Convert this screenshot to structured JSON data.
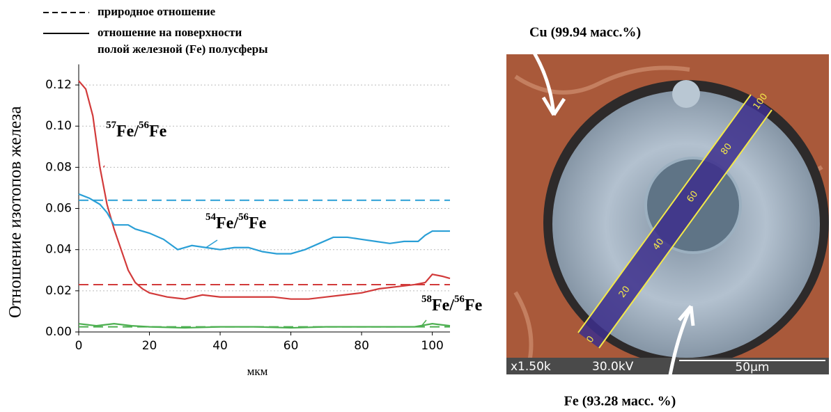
{
  "chart_data": {
    "type": "line",
    "y_label": "Отношение изотопов железа",
    "x_label": "мкм",
    "xlim": [
      0,
      105
    ],
    "ylim": [
      0,
      0.13
    ],
    "xticks": [
      0,
      20,
      40,
      60,
      80,
      100
    ],
    "yticks": [
      {
        "value": 0,
        "label": "0.00"
      },
      {
        "value": 0.02,
        "label": "0.02"
      },
      {
        "value": 0.04,
        "label": "0.04"
      },
      {
        "value": 0.06,
        "label": "0.06"
      },
      {
        "value": 0.08,
        "label": "0.08"
      },
      {
        "value": 0.1,
        "label": "0.10"
      },
      {
        "value": 0.12,
        "label": "0.12"
      }
    ],
    "grid": true,
    "legend": [
      {
        "style": "dashed",
        "lines": [
          "природное отношение"
        ]
      },
      {
        "style": "solid",
        "lines": [
          "отношение на поверхности",
          "полой железной (Fe) полусферы"
        ]
      }
    ],
    "series": [
      {
        "label_parts": [
          "57",
          "Fe/",
          "56",
          "Fe"
        ],
        "color": "#d23a3a",
        "x": [
          0,
          2,
          4,
          6,
          8,
          10,
          12,
          14,
          16,
          18,
          20,
          25,
          30,
          35,
          40,
          45,
          50,
          55,
          60,
          65,
          70,
          75,
          80,
          85,
          90,
          95,
          98,
          100,
          103,
          105
        ],
        "values": [
          0.122,
          0.118,
          0.105,
          0.08,
          0.062,
          0.05,
          0.04,
          0.03,
          0.024,
          0.021,
          0.019,
          0.017,
          0.016,
          0.018,
          0.017,
          0.017,
          0.017,
          0.017,
          0.016,
          0.016,
          0.017,
          0.018,
          0.019,
          0.021,
          0.022,
          0.023,
          0.024,
          0.028,
          0.027,
          0.026
        ]
      },
      {
        "label_parts": [
          "54",
          "Fe/",
          "56",
          "Fe"
        ],
        "color": "#2a9fd6",
        "x": [
          0,
          3,
          6,
          8,
          10,
          12,
          14,
          16,
          20,
          24,
          28,
          32,
          36,
          40,
          44,
          48,
          52,
          56,
          60,
          64,
          68,
          72,
          76,
          80,
          84,
          88,
          92,
          96,
          98,
          100,
          103,
          105
        ],
        "values": [
          0.067,
          0.065,
          0.062,
          0.058,
          0.052,
          0.052,
          0.052,
          0.05,
          0.048,
          0.045,
          0.04,
          0.042,
          0.041,
          0.04,
          0.041,
          0.041,
          0.039,
          0.038,
          0.038,
          0.04,
          0.043,
          0.046,
          0.046,
          0.045,
          0.044,
          0.043,
          0.044,
          0.044,
          0.047,
          0.049,
          0.049,
          0.049
        ]
      },
      {
        "label_parts": [
          "58",
          "Fe/",
          "56",
          "Fe"
        ],
        "color": "#4caf50",
        "x": [
          0,
          5,
          10,
          15,
          20,
          30,
          40,
          50,
          60,
          70,
          80,
          90,
          95,
          100,
          105
        ],
        "values": [
          0.004,
          0.003,
          0.004,
          0.003,
          0.0025,
          0.002,
          0.0025,
          0.0025,
          0.002,
          0.0025,
          0.0025,
          0.0025,
          0.0025,
          0.004,
          0.003
        ]
      }
    ],
    "reference_lines": [
      {
        "value": 0.023,
        "color": "#d23a3a"
      },
      {
        "value": 0.064,
        "color": "#2a9fd6"
      },
      {
        "value": 0.0025,
        "color": "#4caf50"
      }
    ]
  },
  "image": {
    "top_label": "Cu (99.94 масс.%)",
    "bottom_label": "Fe (93.28 масс. %)",
    "magnification": "x1.50k",
    "voltage": "30.0kV",
    "scale_bar": "50µm",
    "scale_labels": [
      "0",
      "20",
      "40",
      "60",
      "80",
      "100"
    ]
  }
}
